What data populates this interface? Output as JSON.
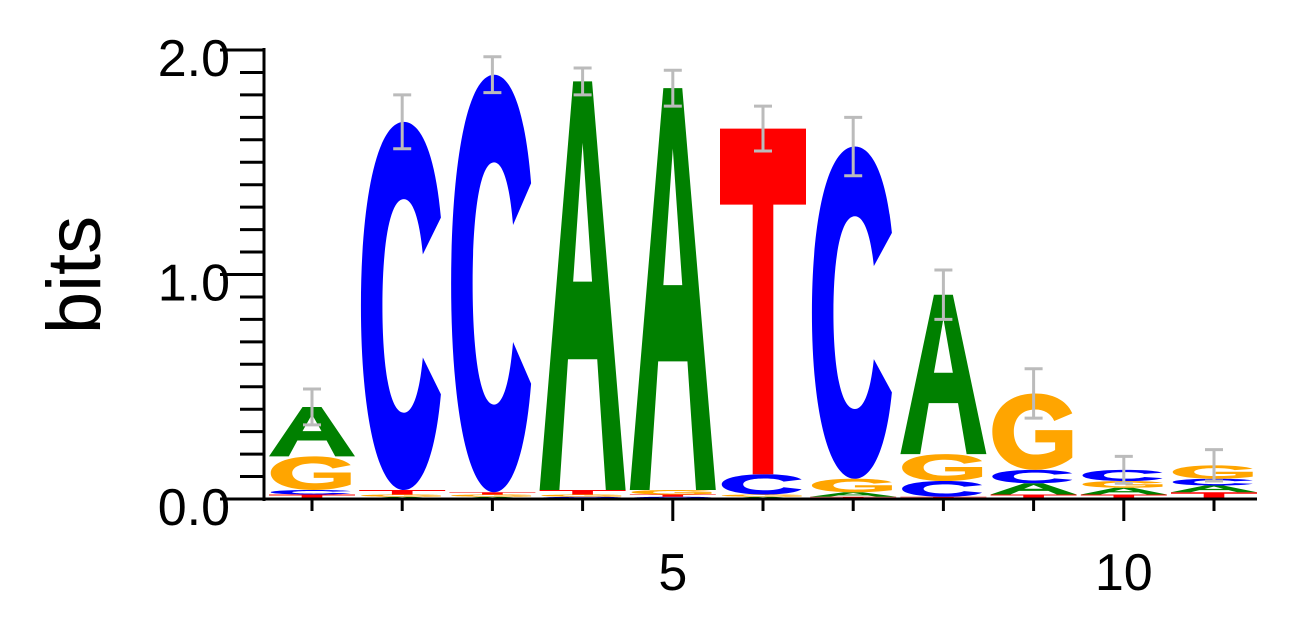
{
  "chart_data": {
    "type": "sequence-logo",
    "ylabel": "bits",
    "ylim": [
      0,
      2
    ],
    "y_ticks": [
      "0.0",
      "1.0",
      "2.0"
    ],
    "x_ticks": [
      {
        "position": 5,
        "label": "5"
      },
      {
        "position": 10,
        "label": "10"
      }
    ],
    "colors": {
      "A": "#008000",
      "C": "#0000ff",
      "G": "#ffa500",
      "T": "#ff0000",
      "error": "#bbbbbb"
    },
    "positions": [
      {
        "pos": 1,
        "total": 0.41,
        "error": 0.08,
        "stack": [
          {
            "base": "T",
            "bits": 0.02
          },
          {
            "base": "C",
            "bits": 0.02
          },
          {
            "base": "G",
            "bits": 0.15
          },
          {
            "base": "A",
            "bits": 0.22
          }
        ]
      },
      {
        "pos": 2,
        "total": 1.68,
        "error": 0.12,
        "stack": [
          {
            "base": "A",
            "bits": 0.01
          },
          {
            "base": "G",
            "bits": 0.01
          },
          {
            "base": "T",
            "bits": 0.02
          },
          {
            "base": "C",
            "bits": 1.64
          }
        ]
      },
      {
        "pos": 3,
        "total": 1.89,
        "error": 0.08,
        "stack": [
          {
            "base": "A",
            "bits": 0.01
          },
          {
            "base": "G",
            "bits": 0.01
          },
          {
            "base": "T",
            "bits": 0.01
          },
          {
            "base": "C",
            "bits": 1.86
          }
        ]
      },
      {
        "pos": 4,
        "total": 1.86,
        "error": 0.06,
        "stack": [
          {
            "base": "C",
            "bits": 0.01
          },
          {
            "base": "G",
            "bits": 0.01
          },
          {
            "base": "T",
            "bits": 0.02
          },
          {
            "base": "A",
            "bits": 1.82
          }
        ]
      },
      {
        "pos": 5,
        "total": 1.83,
        "error": 0.08,
        "stack": [
          {
            "base": "C",
            "bits": 0.01
          },
          {
            "base": "T",
            "bits": 0.01
          },
          {
            "base": "G",
            "bits": 0.02
          },
          {
            "base": "A",
            "bits": 1.79
          }
        ]
      },
      {
        "pos": 6,
        "total": 1.65,
        "error": 0.1,
        "stack": [
          {
            "base": "A",
            "bits": 0.01
          },
          {
            "base": "G",
            "bits": 0.01
          },
          {
            "base": "C",
            "bits": 0.09
          },
          {
            "base": "T",
            "bits": 1.54
          }
        ]
      },
      {
        "pos": 7,
        "total": 1.57,
        "error": 0.13,
        "stack": [
          {
            "base": "T",
            "bits": 0.01
          },
          {
            "base": "A",
            "bits": 0.02
          },
          {
            "base": "G",
            "bits": 0.06
          },
          {
            "base": "C",
            "bits": 1.48
          }
        ]
      },
      {
        "pos": 8,
        "total": 0.91,
        "error": 0.11,
        "stack": [
          {
            "base": "T",
            "bits": 0.01
          },
          {
            "base": "C",
            "bits": 0.07
          },
          {
            "base": "G",
            "bits": 0.12
          },
          {
            "base": "A",
            "bits": 0.71
          }
        ]
      },
      {
        "pos": 9,
        "total": 0.47,
        "error": 0.11,
        "stack": [
          {
            "base": "T",
            "bits": 0.02
          },
          {
            "base": "A",
            "bits": 0.05
          },
          {
            "base": "C",
            "bits": 0.06
          },
          {
            "base": "G",
            "bits": 0.34
          }
        ]
      },
      {
        "pos": 10,
        "total": 0.13,
        "error": 0.06,
        "stack": [
          {
            "base": "T",
            "bits": 0.02
          },
          {
            "base": "A",
            "bits": 0.03
          },
          {
            "base": "G",
            "bits": 0.03
          },
          {
            "base": "C",
            "bits": 0.05
          }
        ]
      },
      {
        "pos": 11,
        "total": 0.15,
        "error": 0.07,
        "stack": [
          {
            "base": "T",
            "bits": 0.03
          },
          {
            "base": "A",
            "bits": 0.03
          },
          {
            "base": "C",
            "bits": 0.03
          },
          {
            "base": "G",
            "bits": 0.06
          }
        ]
      }
    ]
  }
}
